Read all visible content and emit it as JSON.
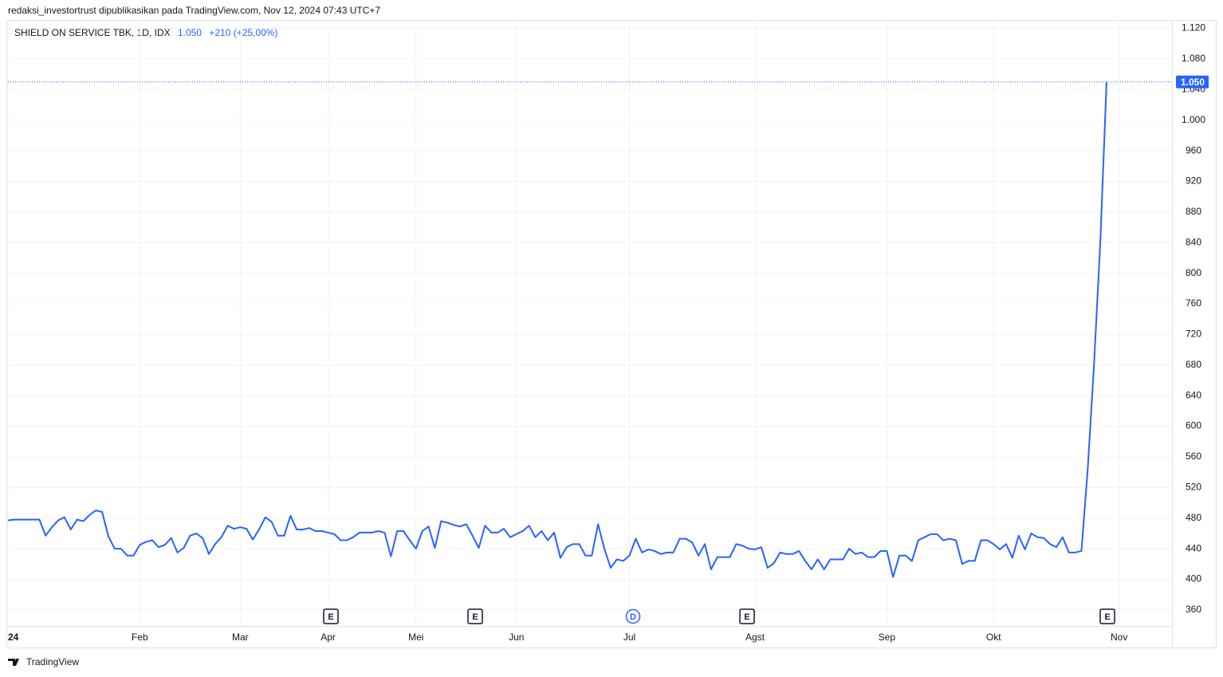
{
  "header": "redaksi_investortrust dipublikasikan pada TradingView.com, Nov 12, 2024 07:43 UTC+7",
  "footer": "TradingView",
  "chart_data": {
    "type": "line",
    "title": "SHIELD ON SERVICE TBK, 1D, IDX",
    "legend_last": "1.050",
    "legend_change": "+210 (+25,00%)",
    "color": "#2962ff",
    "grid": true,
    "ylim": [
      339,
      1131
    ],
    "yticks": [
      360,
      400,
      440,
      480,
      520,
      560,
      600,
      640,
      680,
      720,
      760,
      800,
      840,
      880,
      920,
      960,
      {
        "value": 1000,
        "label": "1.000"
      },
      {
        "value": 1040,
        "label": "1.040"
      },
      {
        "value": 1080,
        "label": "1.080"
      },
      {
        "value": 1120,
        "label": "1.120"
      }
    ],
    "price_label": {
      "value": 1050,
      "label": "1.050"
    },
    "events": [
      "E",
      "E",
      "D",
      "E",
      "E"
    ],
    "categories": [
      "24",
      null,
      null,
      null,
      null,
      null,
      null,
      null,
      null,
      null,
      null,
      null,
      null,
      null,
      null,
      null,
      null,
      null,
      null,
      null,
      null,
      "Feb",
      null,
      null,
      null,
      null,
      null,
      null,
      null,
      null,
      null,
      null,
      null,
      null,
      null,
      null,
      null,
      "Mar",
      null,
      null,
      null,
      null,
      null,
      null,
      null,
      null,
      null,
      null,
      null,
      null,
      null,
      "Apr",
      null,
      null,
      null,
      null,
      null,
      null,
      null,
      null,
      null,
      null,
      null,
      null,
      null,
      "Mei",
      null,
      null,
      null,
      null,
      null,
      null,
      null,
      null,
      null,
      null,
      null,
      null,
      null,
      null,
      null,
      "Jun",
      null,
      null,
      null,
      null,
      null,
      null,
      null,
      null,
      null,
      null,
      null,
      null,
      null,
      null,
      null,
      null,
      null,
      "Jul",
      null,
      null,
      null,
      null,
      null,
      null,
      null,
      null,
      null,
      null,
      null,
      null,
      null,
      null,
      null,
      null,
      null,
      null,
      null,
      "Agst",
      null,
      null,
      null,
      null,
      null,
      null,
      null,
      null,
      null,
      null,
      null,
      null,
      null,
      null,
      null,
      null,
      null,
      null,
      null,
      null,
      "Sep",
      null,
      null,
      null,
      null,
      null,
      null,
      null,
      null,
      null,
      null,
      null,
      null,
      null,
      null,
      null,
      null,
      "Okt",
      null,
      null,
      null,
      null,
      null,
      null,
      null,
      null,
      null,
      null,
      null,
      null,
      null,
      null,
      null,
      null,
      null,
      null,
      null,
      "Nov"
    ],
    "values": [
      477,
      478,
      478,
      478,
      478,
      478,
      457,
      468,
      477,
      481,
      465,
      478,
      476,
      484,
      490,
      488,
      456,
      440,
      440,
      431,
      431,
      445,
      449,
      451,
      442,
      445,
      454,
      435,
      441,
      457,
      460,
      454,
      433,
      446,
      455,
      470,
      466,
      468,
      466,
      452,
      465,
      481,
      475,
      457,
      457,
      483,
      465,
      465,
      467,
      463,
      463,
      461,
      459,
      451,
      451,
      455,
      461,
      461,
      461,
      463,
      461,
      430,
      463,
      463,
      451,
      440,
      463,
      469,
      441,
      476,
      474,
      471,
      469,
      472,
      457,
      441,
      470,
      461,
      461,
      466,
      455,
      459,
      463,
      470,
      455,
      463,
      451,
      461,
      428,
      442,
      446,
      446,
      431,
      431,
      472,
      440,
      415,
      426,
      424,
      431,
      453,
      435,
      439,
      437,
      433,
      435,
      435,
      453,
      453,
      448,
      431,
      446,
      413,
      429,
      429,
      429,
      446,
      444,
      440,
      439,
      442,
      415,
      421,
      435,
      433,
      433,
      437,
      424,
      413,
      426,
      413,
      426,
      426,
      426,
      440,
      433,
      435,
      429,
      429,
      437,
      437,
      403,
      431,
      431,
      424,
      451,
      455,
      459,
      459,
      451,
      453,
      451,
      420,
      424,
      424,
      451,
      451,
      446,
      439,
      446,
      428,
      457,
      439,
      460,
      455,
      454,
      446,
      442,
      455,
      435,
      435,
      437,
      544,
      680,
      840,
      1050,
      null,
      null
    ]
  }
}
